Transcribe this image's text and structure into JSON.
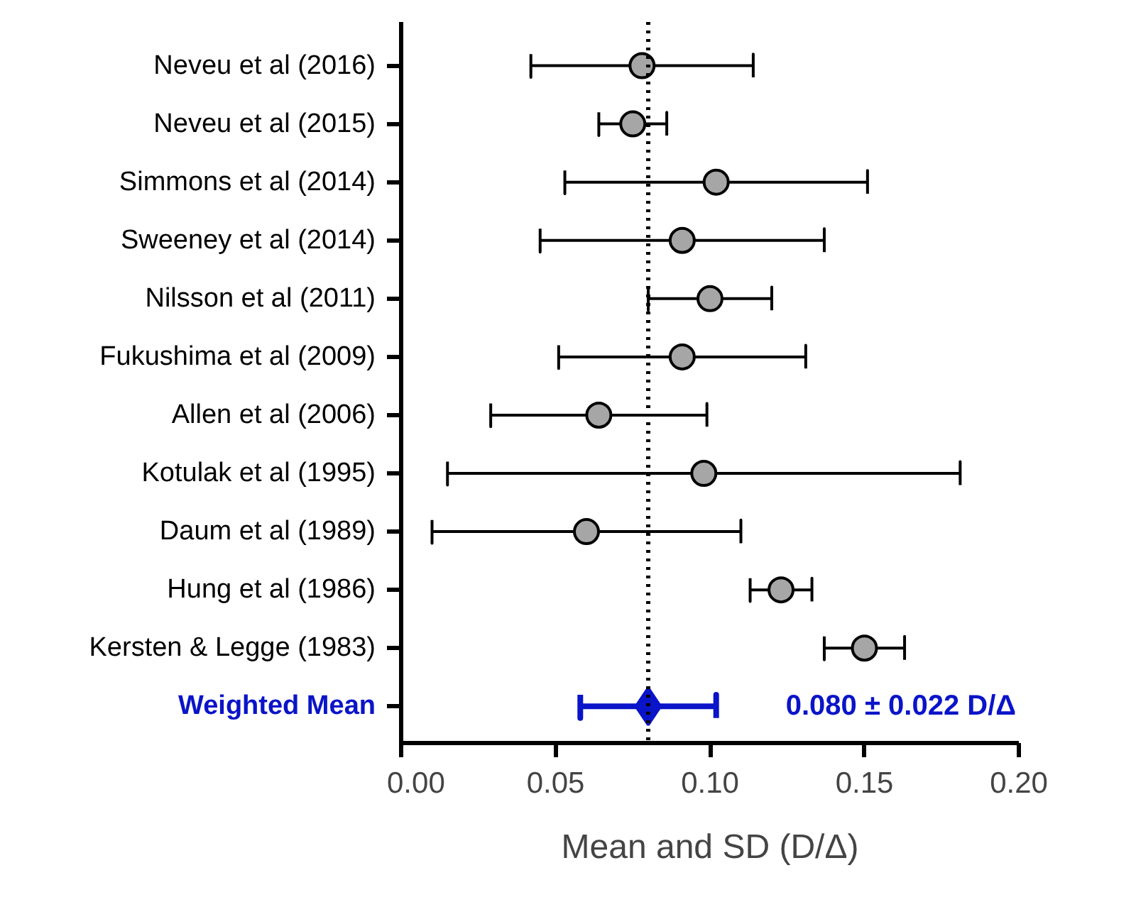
{
  "chart_data": {
    "type": "scatter",
    "orientation": "horizontal",
    "xlabel": "Mean and SD (D/Δ)",
    "categories": [
      "Neveu et al (2016)",
      "Neveu et al (2015)",
      "Simmons et al (2014)",
      "Sweeney et al (2014)",
      "Nilsson et al (2011)",
      "Fukushima et al (2009)",
      "Allen et al (2006)",
      "Kotulak et al (1995)",
      "Daum et al (1989)",
      "Hung et al (1986)",
      "Kersten & Legge (1983)",
      "Weighted Mean"
    ],
    "series": [
      {
        "color": "#a6a6a6",
        "marker": "circle",
        "values": [
          0.078,
          0.075,
          0.102,
          0.091,
          0.1,
          0.091,
          0.064,
          0.098,
          0.06,
          0.123,
          0.15,
          null
        ],
        "errors": [
          0.036,
          0.011,
          0.049,
          0.046,
          0.02,
          0.04,
          0.035,
          0.083,
          0.05,
          0.01,
          0.013,
          null
        ]
      },
      {
        "color": "#0a14c8",
        "marker": "diamond",
        "values": [
          null,
          null,
          null,
          null,
          null,
          null,
          null,
          null,
          null,
          null,
          null,
          0.08
        ],
        "errors": [
          null,
          null,
          null,
          null,
          null,
          null,
          null,
          null,
          null,
          null,
          null,
          0.022
        ]
      }
    ],
    "xlim": [
      0,
      0.2
    ],
    "xticks": [
      {
        "value": 0,
        "label": "0.00"
      },
      {
        "value": 0.05,
        "label": "0.05"
      },
      {
        "value": 0.1,
        "label": "0.10"
      },
      {
        "value": 0.15,
        "label": "0.15"
      },
      {
        "value": 0.2,
        "label": "0.20"
      }
    ],
    "ref_lines": [
      {
        "axis": "x",
        "value": 0.08,
        "label": null,
        "color": "#000000",
        "line_style": "dotted"
      }
    ],
    "annotations": [
      "0.080 ± 0.022 D/Δ"
    ],
    "grid": false,
    "legend": false
  }
}
